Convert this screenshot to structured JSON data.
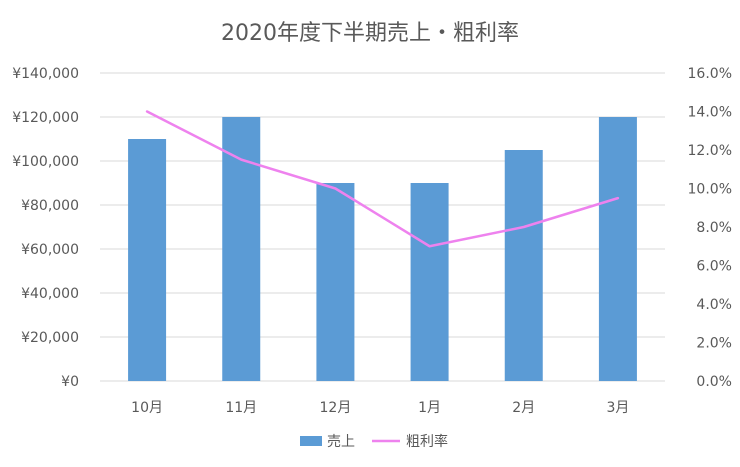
{
  "chart_data": {
    "type": "bar+line",
    "title": "2020年度下半期売上・粗利率",
    "categories": [
      "10月",
      "11月",
      "12月",
      "1月",
      "2月",
      "3月"
    ],
    "series": [
      {
        "name": "売上",
        "type": "bar",
        "axis": "left",
        "color": "#5b9bd5",
        "values": [
          110000,
          120000,
          90000,
          90000,
          105000,
          120000
        ]
      },
      {
        "name": "粗利率",
        "type": "line",
        "axis": "right",
        "color": "#ee82ee",
        "values": [
          14.0,
          11.5,
          10.0,
          7.0,
          8.0,
          9.5
        ]
      }
    ],
    "left_axis": {
      "min": 0,
      "max": 140000,
      "ticks": [
        "¥0",
        "¥20,000",
        "¥40,000",
        "¥60,000",
        "¥80,000",
        "¥100,000",
        "¥120,000",
        "¥140,000"
      ]
    },
    "right_axis": {
      "min": 0,
      "max": 16,
      "ticks": [
        "0.0%",
        "2.0%",
        "4.0%",
        "6.0%",
        "8.0%",
        "10.0%",
        "12.0%",
        "14.0%",
        "16.0%"
      ]
    },
    "grid": true,
    "legend": {
      "position": "bottom",
      "items": [
        "売上",
        "粗利率"
      ]
    }
  }
}
